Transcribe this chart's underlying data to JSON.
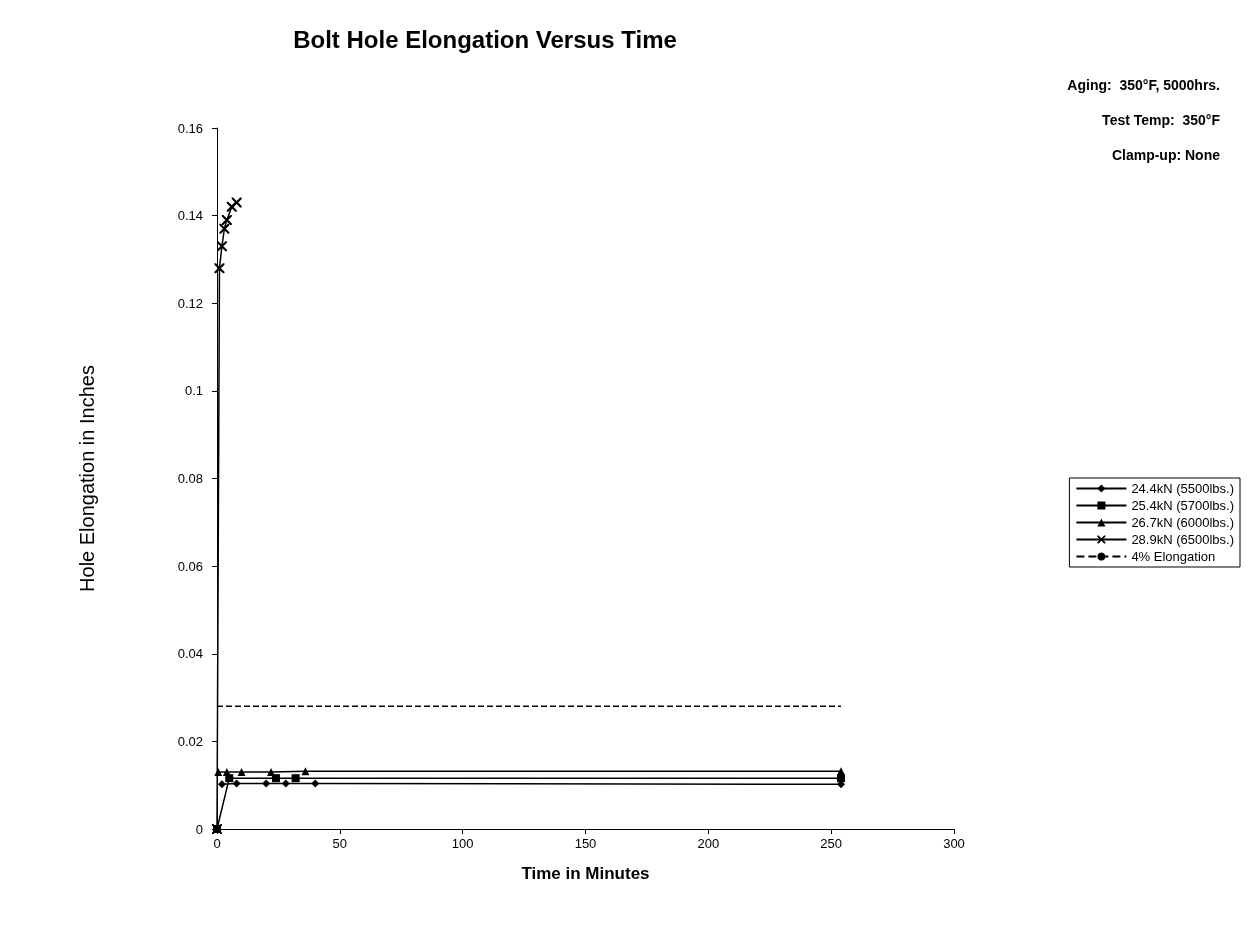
{
  "chart_data": {
    "type": "line",
    "title": "Bolt Hole Elongation Versus Time",
    "xlabel": "Time in Minutes",
    "ylabel": "Hole Elongation in Inches",
    "annotations": [
      "Aging:  350°F, 5000hrs.",
      "Test Temp:  350°F",
      "Clamp-up: None"
    ],
    "xlim": [
      0,
      300
    ],
    "xticks": [
      0,
      50,
      100,
      150,
      200,
      250,
      300
    ],
    "ylim": [
      0,
      0.16
    ],
    "yticks": [
      0,
      0.02,
      0.04,
      0.06,
      0.08,
      0.1,
      0.12,
      0.14,
      0.16
    ],
    "grid": false,
    "legend": "right",
    "series": [
      {
        "name": "24.4kN (5500lbs.)",
        "color": "#000000",
        "marker": "diamond",
        "x": [
          2,
          8,
          20,
          28,
          40,
          254
        ],
        "values": [
          0.0102,
          0.0104,
          0.0104,
          0.0104,
          0.0104,
          0.0102
        ]
      },
      {
        "name": "25.4kN (5700lbs.)",
        "color": "#000000",
        "marker": "square",
        "x": [
          0,
          5,
          24,
          32,
          254
        ],
        "values": [
          0,
          0.0116,
          0.0116,
          0.0116,
          0.0116
        ]
      },
      {
        "name": "26.7kN (6000lbs.)",
        "color": "#000000",
        "marker": "triangle",
        "x": [
          0.5,
          4,
          10,
          22,
          36,
          254
        ],
        "values": [
          0.013,
          0.013,
          0.013,
          0.013,
          0.0132,
          0.0132
        ]
      },
      {
        "name": "28.9kN (6500lbs.)",
        "color": "#000000",
        "marker": "cross",
        "x": [
          0,
          1,
          2,
          3,
          4,
          6,
          8
        ],
        "values": [
          0,
          0.128,
          0.133,
          0.137,
          0.139,
          0.142,
          0.143
        ]
      },
      {
        "name": "4% Elongation",
        "color": "#000000",
        "marker": "none",
        "line_style": "dashed",
        "x": [
          0,
          254
        ],
        "values": [
          0.028,
          0.028
        ]
      }
    ]
  }
}
